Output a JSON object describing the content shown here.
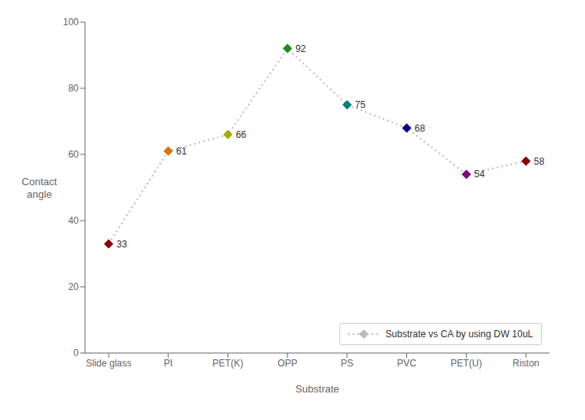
{
  "chart_data": {
    "type": "line",
    "categories": [
      "Slide glass",
      "PI",
      "PET(K)",
      "OPP",
      "PS",
      "PVC",
      "PET(U)",
      "Riston"
    ],
    "series": [
      {
        "name": "Substrate vs CA by using DW 10uL",
        "color": "#BBBBBB",
        "values": [
          33,
          61,
          66,
          92,
          75,
          68,
          54,
          58
        ],
        "colors": [
          "#8B0000",
          "#E07000",
          "#A8A800",
          "#228B22",
          "#008080",
          "#00008B",
          "#800080",
          "#8B0000"
        ],
        "marker": "diamond",
        "line_style": "dotted"
      }
    ],
    "xlabel": "Substrate",
    "ylabel": "Contact\nangle",
    "ylim": [
      0,
      100
    ],
    "yticks": [
      0,
      20,
      40,
      60,
      80,
      100
    ],
    "data_labels": true,
    "grid": false,
    "legend": "lower right"
  }
}
